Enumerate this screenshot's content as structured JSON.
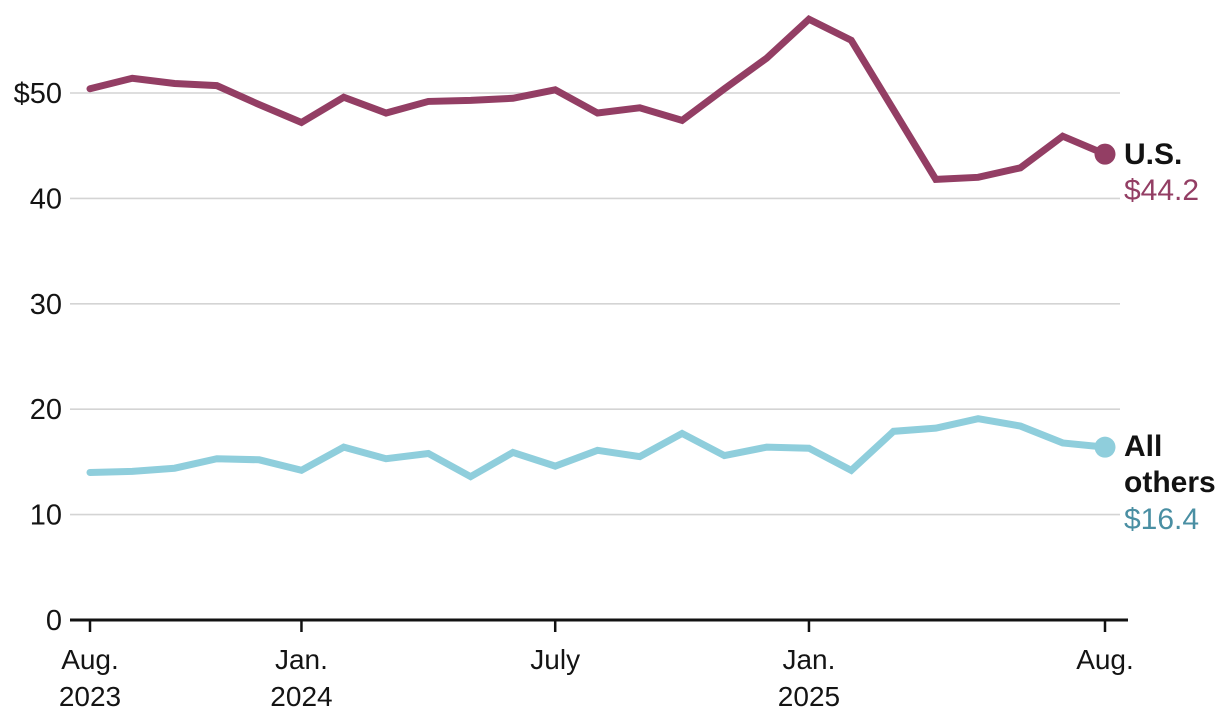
{
  "colors": {
    "us": "#933E64",
    "others_line": "#8FCEDC",
    "others_value_text": "#4A8FA3",
    "grid": "#D4D4D4",
    "axis": "#121212",
    "text": "#141414",
    "background": "#FFFFFF"
  },
  "legend": {
    "us_name": "U.S.",
    "us_value": "$44.2",
    "others_name_line1": "All",
    "others_name_line2": "others",
    "others_value": "$16.4"
  },
  "chart_data": {
    "type": "line",
    "title": "",
    "xlabel": "",
    "ylabel": "",
    "unit": "$",
    "grid": true,
    "legend_position": "right-of-line-ends",
    "ylim": [
      0,
      57.5
    ],
    "x": [
      "Aug. 2023",
      "Sep. 2023",
      "Oct. 2023",
      "Nov. 2023",
      "Dec. 2023",
      "Jan. 2024",
      "Feb. 2024",
      "Mar. 2024",
      "Apr. 2024",
      "May 2024",
      "June 2024",
      "July 2024",
      "Aug. 2024",
      "Sep. 2024",
      "Oct. 2024",
      "Nov. 2024",
      "Dec. 2024",
      "Jan. 2025",
      "Feb. 2025",
      "Mar. 2025",
      "Apr. 2025",
      "May 2025",
      "June 2025",
      "July 2025",
      "Aug. 2025"
    ],
    "series": [
      {
        "name": "U.S.",
        "end_value_label": "$44.2",
        "end_value": 44.2,
        "values": [
          50.4,
          51.4,
          50.9,
          50.7,
          48.9,
          47.2,
          49.6,
          48.1,
          49.2,
          49.3,
          49.5,
          50.3,
          48.1,
          48.6,
          47.4,
          50.4,
          53.3,
          57.0,
          55.0,
          48.4,
          41.8,
          42.0,
          42.9,
          45.9,
          44.2
        ]
      },
      {
        "name": "All others",
        "end_value_label": "$16.4",
        "end_value": 16.4,
        "values": [
          14.0,
          14.1,
          14.4,
          15.3,
          15.2,
          14.2,
          16.4,
          15.3,
          15.8,
          13.6,
          15.9,
          14.6,
          16.1,
          15.5,
          17.7,
          15.6,
          16.4,
          16.3,
          14.2,
          17.9,
          18.2,
          19.1,
          18.4,
          16.8,
          16.4
        ]
      }
    ],
    "y_ticks": [
      {
        "label": "$50",
        "value": 50
      },
      {
        "label": "40",
        "value": 40
      },
      {
        "label": "30",
        "value": 30
      },
      {
        "label": "20",
        "value": 20
      },
      {
        "label": "10",
        "value": 10
      },
      {
        "label": "0",
        "value": 0
      }
    ],
    "x_ticks": [
      {
        "line1": "Aug.",
        "line2": "2023",
        "index": 0
      },
      {
        "line1": "Jan.",
        "line2": "2024",
        "index": 5
      },
      {
        "line1": "July",
        "line2": "",
        "index": 11
      },
      {
        "line1": "Jan.",
        "line2": "2025",
        "index": 17
      },
      {
        "line1": "Aug.",
        "line2": "",
        "index": 24
      }
    ]
  }
}
